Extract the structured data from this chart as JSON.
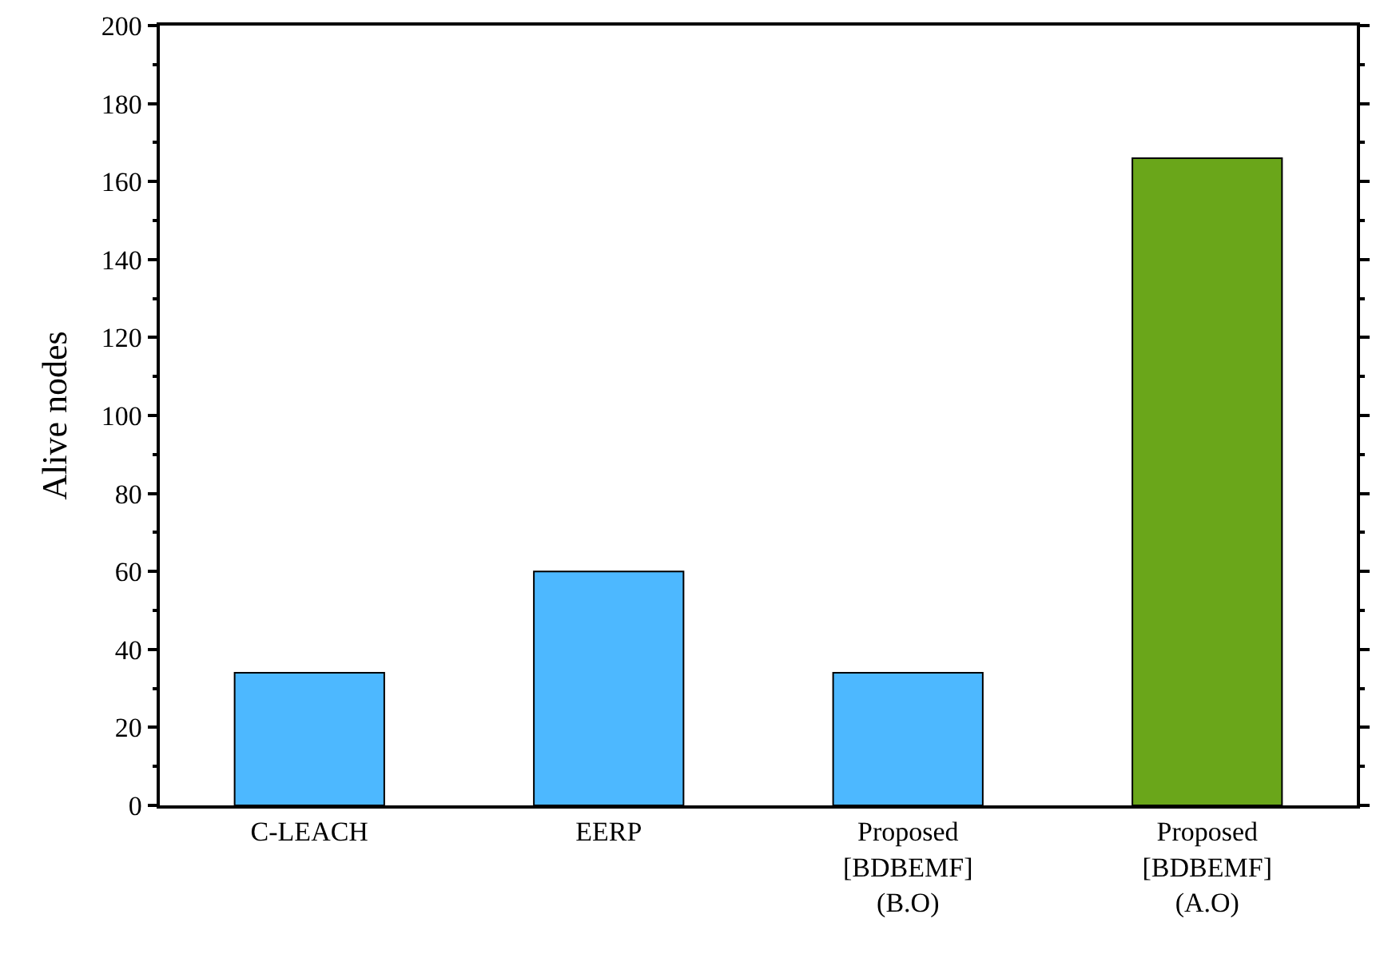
{
  "chart_data": {
    "type": "bar",
    "ylabel": "Alive nodes",
    "categories": [
      "C-LEACH",
      "EERP",
      "Proposed\n[BDBEMF]\n(B.O)",
      "Proposed\n[BDBEMF]\n(A.O)"
    ],
    "values": [
      34,
      60,
      34,
      166
    ],
    "colors": [
      "#4db8ff",
      "#4db8ff",
      "#4db8ff",
      "#6aa61a"
    ],
    "ylim": [
      0,
      200
    ],
    "yticks": [
      0,
      20,
      40,
      60,
      80,
      100,
      120,
      140,
      160,
      180,
      200
    ],
    "legend": false
  }
}
